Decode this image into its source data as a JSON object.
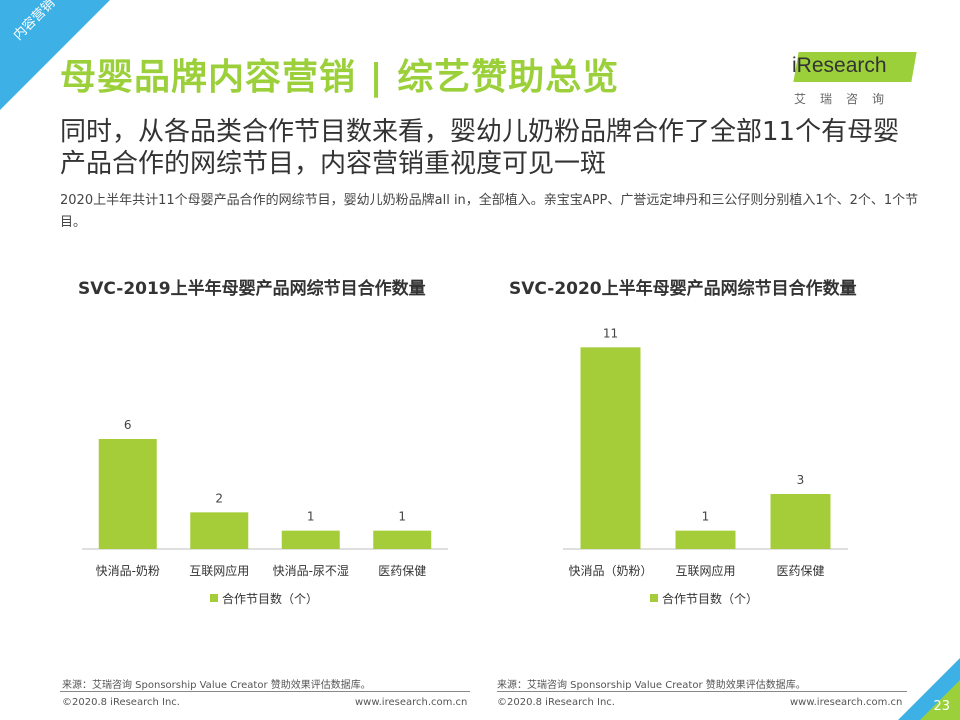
{
  "corner_label": "内容营销",
  "page_title": "母婴品牌内容营销 | 综艺赞助总览",
  "logo": {
    "name": "iResearch",
    "sub": "艾瑞咨询"
  },
  "headline": "同时，从各品类合作节目数来看，婴幼儿奶粉品牌合作了全部11个有母婴产品合作的网综节目，内容营销重视度可见一斑",
  "sub_text": "2020上半年共计11个母婴产品合作的网综节目，婴幼儿奶粉品牌all  in，全部植入。亲宝宝APP、广誉远定坤丹和三公仔则分别植入1个、2个、1个节目。",
  "colors": {
    "bar": "#a5cd39",
    "title": "#9bd03b",
    "accent": "#3db0e6"
  },
  "chart_data": [
    {
      "type": "bar",
      "title": "SVC-2019上半年母婴产品网综节目合作数量",
      "categories": [
        "快消品-奶粉",
        "互联网应用",
        "快消品-尿不湿",
        "医药保健"
      ],
      "series": [
        {
          "name": "合作节目数（个）",
          "values": [
            6,
            2,
            1,
            1
          ]
        }
      ],
      "ylim": [
        0,
        12
      ],
      "legend": "bottom",
      "grid": false
    },
    {
      "type": "bar",
      "title": "SVC-2020上半年母婴产品网综节目合作数量",
      "categories": [
        "快消品（奶粉）",
        "互联网应用",
        "医药保健"
      ],
      "series": [
        {
          "name": "合作节目数（个）",
          "values": [
            11,
            1,
            3
          ]
        }
      ],
      "ylim": [
        0,
        12
      ],
      "legend": "bottom",
      "grid": false
    }
  ],
  "footer": {
    "source": "来源：艾瑞咨询 Sponsorship Value Creator 赞助效果评估数据库。",
    "copyright": "©2020.8 iResearch Inc.",
    "url": "www.iresearch.com.cn"
  },
  "page_number": "23"
}
